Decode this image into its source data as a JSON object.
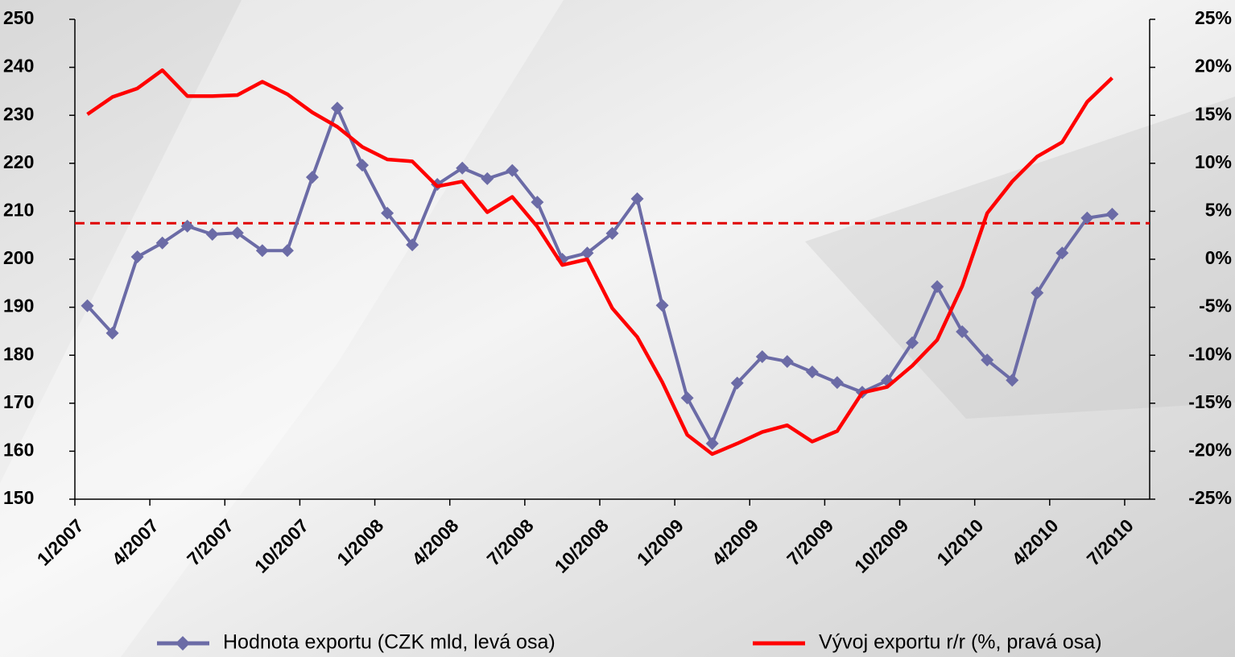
{
  "chart_data": {
    "type": "line",
    "categories": [
      "1/2007",
      null,
      null,
      "4/2007",
      null,
      null,
      "7/2007",
      null,
      null,
      "10/2007",
      null,
      null,
      "1/2008",
      null,
      null,
      "4/2008",
      null,
      null,
      "7/2008",
      null,
      null,
      "10/2008",
      null,
      null,
      "1/2009",
      null,
      null,
      "4/2009",
      null,
      null,
      "7/2009",
      null,
      null,
      "10/2009",
      null,
      null,
      "1/2010",
      null,
      null,
      "4/2010",
      null,
      null,
      "7/2010"
    ],
    "series": [
      {
        "name": "Hodnota exportu (CZK mld, levá osa)",
        "color": "#6b6ba6",
        "marker": "diamond",
        "axis": "y",
        "values": [
          190.3,
          184.6,
          200.5,
          203.4,
          206.9,
          205.2,
          205.5,
          201.8,
          201.8,
          217.1,
          231.5,
          219.6,
          209.6,
          203,
          215.6,
          219,
          216.8,
          218.5,
          211.9,
          200,
          201.3,
          205.4,
          212.6,
          190.4,
          171.1,
          161.6,
          174.2,
          179.7,
          178.7,
          176.5,
          174.3,
          172.3,
          174.7,
          182.6,
          194.3,
          184.9,
          179,
          174.8,
          193,
          201.3,
          208.6,
          209.4,
          null
        ]
      },
      {
        "name": "Vývoj exportu r/r (%, pravá osa)",
        "color": "#ff0000",
        "axis": "y2",
        "values": [
          15.1,
          16.9,
          17.8,
          19.7,
          17.0,
          17.0,
          17.1,
          18.5,
          17.2,
          15.3,
          13.8,
          11.7,
          10.4,
          10.2,
          7.6,
          8.1,
          4.9,
          6.5,
          3.4,
          -0.6,
          0,
          -5.1,
          -8.1,
          -12.8,
          -18.3,
          -20.3,
          -19.2,
          -18,
          -17.3,
          -19,
          -17.9,
          -13.9,
          -13.3,
          -11.1,
          -8.4,
          -2.8,
          4.8,
          8.1,
          10.7,
          12.2,
          16.4,
          18.9,
          null
        ]
      }
    ],
    "ylim": [
      150,
      250
    ],
    "yticks": [
      150,
      160,
      170,
      180,
      190,
      200,
      210,
      220,
      230,
      240,
      250
    ],
    "y2lim": [
      -25,
      25
    ],
    "y2ticks": [
      {
        "value": -25,
        "label": "-25%"
      },
      {
        "value": -20,
        "label": "-20%"
      },
      {
        "value": -15,
        "label": "-15%"
      },
      {
        "value": -10,
        "label": "-10%"
      },
      {
        "value": -5,
        "label": "-5%"
      },
      {
        "value": 0,
        "label": "0%"
      },
      {
        "value": 5,
        "label": "5%"
      },
      {
        "value": 10,
        "label": "10%"
      },
      {
        "value": 15,
        "label": "15%"
      },
      {
        "value": 20,
        "label": "20%"
      },
      {
        "value": 25,
        "label": "25%"
      }
    ],
    "reference_line": {
      "value": 207.5,
      "axis": "y",
      "color": "#e00000",
      "dashed": true
    },
    "legend": "bottom",
    "grid": false
  }
}
